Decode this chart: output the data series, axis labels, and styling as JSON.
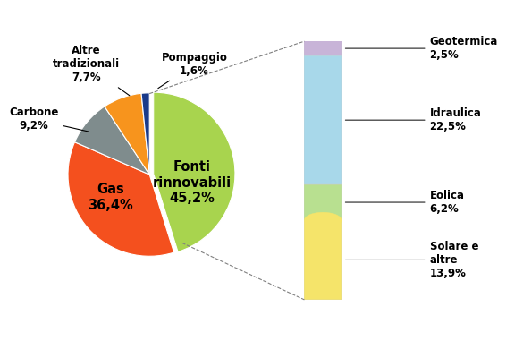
{
  "pie_values": [
    45.2,
    36.4,
    9.2,
    7.7,
    1.6
  ],
  "pie_colors": [
    "#a8d44e",
    "#f4501e",
    "#7f8c8d",
    "#f7941d",
    "#1a3a8a"
  ],
  "pie_explode": [
    0.05,
    0,
    0,
    0,
    0
  ],
  "pie_startangle": 90,
  "fonti_label": "Fonti\nrinnovabili\n45,2%",
  "gas_label": "Gas\n36,4%",
  "carbone_label": "Carbone\n9,2%",
  "altre_label": "Altre\ntradizionali\n7,7%",
  "pompaggio_label": "Pompaggio\n1,6%",
  "bar_values": [
    2.5,
    22.5,
    6.2,
    13.9
  ],
  "bar_colors": [
    "#c8b4d8",
    "#a8d8ea",
    "#b8e090",
    "#f5e46a"
  ],
  "bar_labels": [
    "Geotermica\n2,5%",
    "Idraulica\n22,5%",
    "Eolica\n6,2%",
    "Solare e\naltre\n13,9%"
  ],
  "background_color": "#ffffff",
  "label_fontsize": 8.5,
  "inner_label_fontsize": 10.5
}
